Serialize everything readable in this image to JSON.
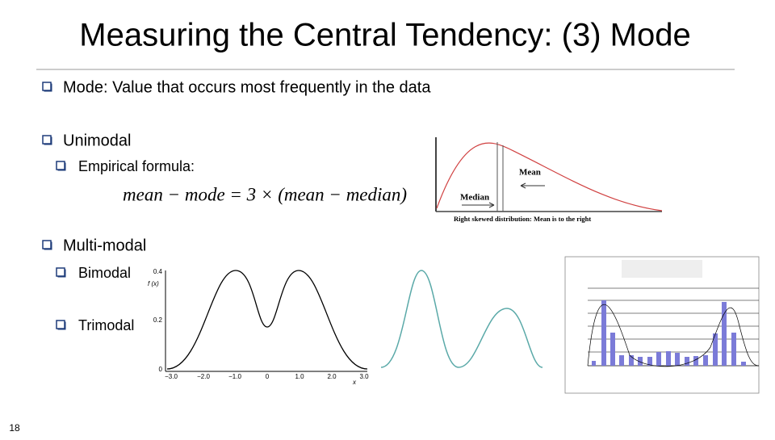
{
  "header": {
    "title": "Measuring the Central Tendency: (3) Mode"
  },
  "bullets": [
    {
      "text": "Mode: Value that occurs most frequently in the data"
    },
    {
      "text": "Unimodal",
      "sub": [
        {
          "text": "Empirical formula:"
        }
      ],
      "formula": "mean − mode = 3 × (mean − median)"
    },
    {
      "text": "Multi-modal",
      "sub": [
        {
          "text": "Bimodal"
        },
        {
          "text": "Trimodal"
        }
      ]
    }
  ],
  "skew_figure": {
    "mean_label": "Mean",
    "median_label": "Median",
    "caption": "Right skewed distribution: Mean is to the right"
  },
  "bimodal_figure": {
    "y_label": "f (x)",
    "x_label": "x",
    "xticks": [
      "−3.0",
      "−2.0",
      "−1.0",
      "0",
      "1.0",
      "2.0",
      "3.0"
    ],
    "yticks": [
      "0.4",
      "0.2",
      "0"
    ]
  },
  "page_number": "18"
}
